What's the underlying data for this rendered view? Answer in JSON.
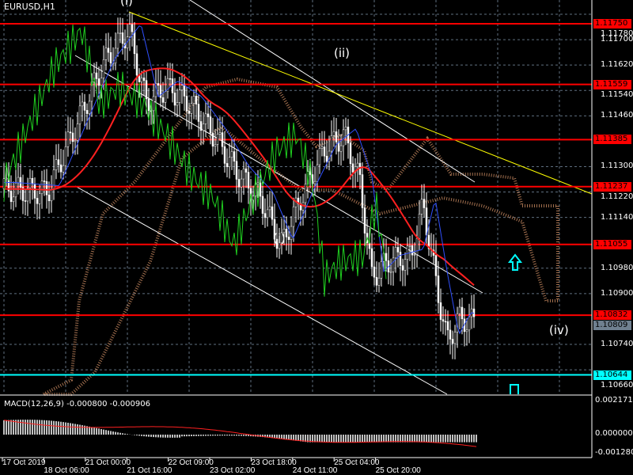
{
  "symbol_title": "EURUSD,H1",
  "price_axis": [
    "1.11780",
    "1.11700",
    "1.11620",
    "1.11540",
    "1.11460",
    "1.11300",
    "1.11220",
    "1.11140",
    "1.10980",
    "1.10900",
    "1.10740",
    "1.10660"
  ],
  "level_tags": [
    {
      "value": "1.11750",
      "color": "#ff0000"
    },
    {
      "value": "1.11559",
      "color": "#ff0000"
    },
    {
      "value": "1.11385",
      "color": "#ff0000"
    },
    {
      "value": "1.11237",
      "color": "#ff0000"
    },
    {
      "value": "1.11055",
      "color": "#ff0000"
    },
    {
      "value": "1.10832",
      "color": "#ff0000"
    },
    {
      "value": "1.10644",
      "color": "#00ffff"
    }
  ],
  "current_price": "1.10809",
  "current_price_color": "#708090",
  "wave_labels": [
    "(i)",
    "(ii)",
    "(i)",
    "(iv)"
  ],
  "macd": {
    "label": "MACD(12,26,9) -0.000800 -0.000906",
    "axis": [
      "0.002171",
      "0.000000",
      "-0.001280"
    ]
  },
  "time_axis": [
    "17 Oct 2019",
    "18 Oct 06:00",
    "21 Oct 00:00",
    "21 Oct 16:00",
    "22 Oct 09:00",
    "23 Oct 02:00",
    "23 Oct 18:00",
    "24 Oct 11:00",
    "25 Oct 04:00",
    "25 Oct 20:00"
  ],
  "arrows": [
    {
      "icon": "up-arrow-icon",
      "color": "#00ffff"
    },
    {
      "icon": "stop-marker-icon",
      "color": "#00ffff"
    }
  ]
}
